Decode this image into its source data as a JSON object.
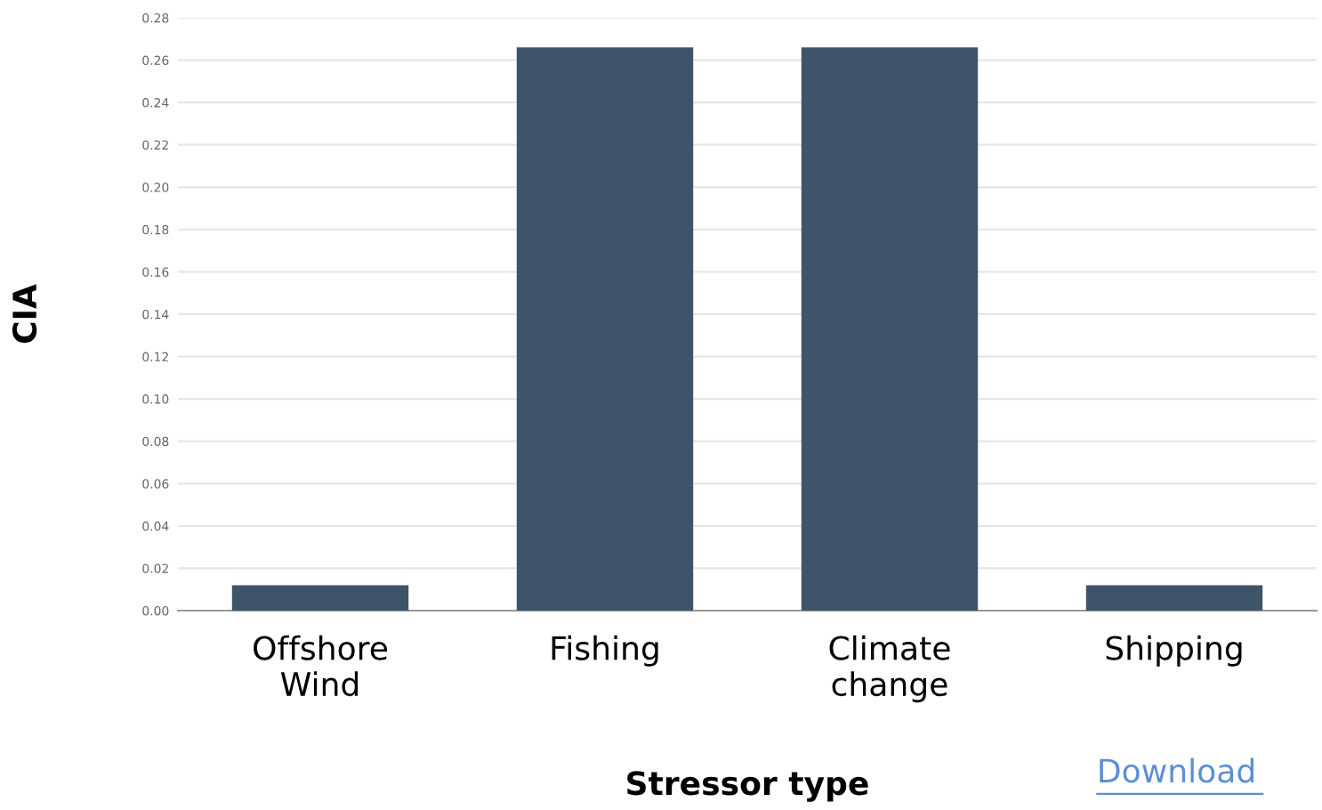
{
  "chart_data": {
    "type": "bar",
    "xlabel": "Stressor type",
    "ylabel": "CIA",
    "categories": [
      "Offshore\nWind",
      "Fishing",
      "Climate\nchange",
      "Shipping"
    ],
    "values": [
      0.012,
      0.266,
      0.266,
      0.012
    ],
    "color": "#3e5468",
    "ylim": [
      0,
      0.28
    ],
    "yticks": [
      {
        "value": 0,
        "label": "0.00"
      },
      {
        "value": 0.02,
        "label": "0.02"
      },
      {
        "value": 0.04,
        "label": "0.04"
      },
      {
        "value": 0.06,
        "label": "0.06"
      },
      {
        "value": 0.08,
        "label": "0.08"
      },
      {
        "value": 0.1,
        "label": "0.10"
      },
      {
        "value": 0.12,
        "label": "0.12"
      },
      {
        "value": 0.14,
        "label": "0.14"
      },
      {
        "value": 0.16,
        "label": "0.16"
      },
      {
        "value": 0.18,
        "label": "0.18"
      },
      {
        "value": 0.2,
        "label": "0.20"
      },
      {
        "value": 0.22,
        "label": "0.22"
      },
      {
        "value": 0.24,
        "label": "0.24"
      },
      {
        "value": 0.26,
        "label": "0.26"
      },
      {
        "value": 0.28,
        "label": "0.28"
      }
    ],
    "grid": "y",
    "annotations": [
      "Download"
    ]
  }
}
